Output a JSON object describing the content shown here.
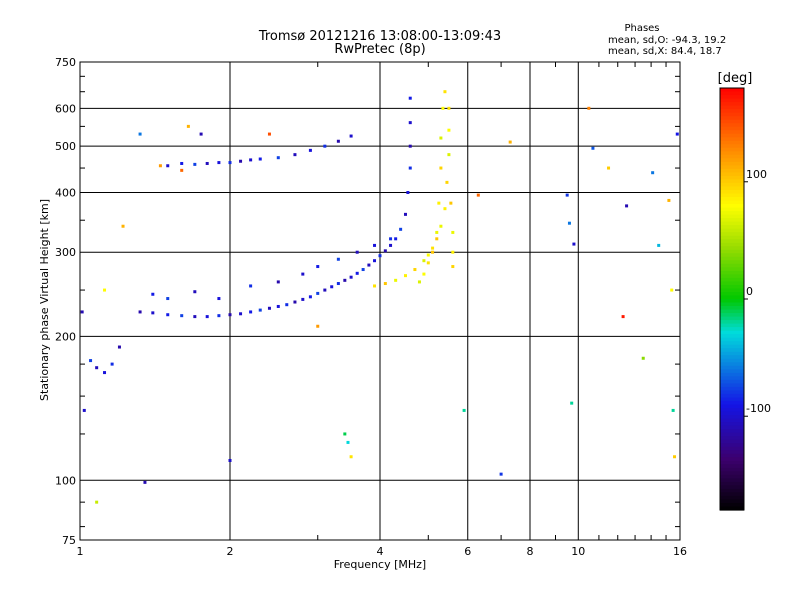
{
  "chart_data": {
    "type": "scatter",
    "title": "Tromsø 20121216 13:08:00-13:09:43",
    "subtitle": "RwPretec (8p)",
    "xlabel": "Frequency [MHz]",
    "ylabel": "Stationary phase Virtual Height [km]",
    "x_scale": "log",
    "y_scale": "log",
    "xlim": [
      1,
      16
    ],
    "ylim": [
      75,
      750
    ],
    "x_ticks": [
      1,
      2,
      4,
      6,
      8,
      10,
      16
    ],
    "x_tick_labels": [
      "1",
      "2",
      "4",
      "6",
      "8",
      "10",
      "16"
    ],
    "y_ticks": [
      75,
      100,
      200,
      300,
      400,
      500,
      600,
      750
    ],
    "y_tick_labels": [
      "75",
      "100",
      "200",
      "300",
      "400",
      "500",
      "600",
      "750"
    ],
    "grid": true,
    "legend": {
      "title": "Phases",
      "lines": [
        "mean, sd,O: -94.3, 19.2",
        "mean, sd,X:  84.4, 18.7"
      ],
      "placement": "top-right"
    },
    "colorbar": {
      "label": "[deg]",
      "range": [
        -180,
        180
      ],
      "ticks": [
        -100,
        0,
        100
      ],
      "tick_labels": [
        "-100",
        "0",
        "100"
      ],
      "colormap": "rainbow"
    },
    "series": [
      {
        "name": "O",
        "color_value": -94.3,
        "x": [
          1.32,
          1.4,
          1.5,
          1.6,
          1.7,
          1.8,
          1.9,
          2.0,
          2.1,
          2.2,
          2.3,
          2.4,
          2.5,
          2.6,
          2.7,
          2.8,
          2.9,
          3.0,
          3.1,
          3.2,
          3.3,
          3.4,
          3.5,
          3.6,
          3.7,
          3.8,
          3.9,
          4.0,
          4.1,
          4.2,
          4.3,
          4.4,
          4.5,
          4.55,
          4.6,
          4.6,
          4.6,
          4.6,
          1.05,
          1.08,
          1.12,
          1.16,
          1.2,
          1.5,
          1.6,
          1.7,
          1.8,
          1.9,
          2.0,
          2.1,
          2.2,
          2.3,
          2.5,
          2.7,
          2.9,
          3.1,
          3.3,
          3.5,
          1.4,
          1.5,
          1.7,
          1.9,
          2.2,
          2.5,
          2.8,
          3.0,
          3.3,
          3.6,
          3.9,
          4.2
        ],
        "y": [
          225,
          224,
          222,
          221,
          220,
          220,
          221,
          222,
          223,
          225,
          227,
          229,
          231,
          233,
          236,
          239,
          242,
          246,
          250,
          254,
          258,
          262,
          266,
          271,
          276,
          282,
          288,
          295,
          302,
          310,
          320,
          335,
          360,
          400,
          450,
          500,
          560,
          630,
          178,
          172,
          168,
          175,
          190,
          455,
          460,
          458,
          460,
          462,
          462,
          465,
          468,
          470,
          473,
          480,
          490,
          500,
          512,
          525,
          245,
          240,
          248,
          240,
          255,
          260,
          270,
          280,
          290,
          300,
          310,
          320
        ]
      },
      {
        "name": "X",
        "color_value": 84.4,
        "x": [
          3.9,
          4.1,
          4.3,
          4.5,
          4.7,
          4.9,
          5.0,
          5.1,
          5.2,
          5.3,
          5.4,
          5.45,
          5.5,
          5.5,
          5.5,
          5.55,
          5.6,
          5.6,
          5.6,
          4.8,
          4.9,
          5.0,
          5.1,
          5.2,
          5.25,
          5.3,
          5.3,
          5.35,
          5.4
        ],
        "y": [
          255,
          258,
          262,
          268,
          276,
          288,
          296,
          306,
          320,
          340,
          370,
          420,
          480,
          540,
          600,
          380,
          330,
          300,
          280,
          260,
          270,
          285,
          300,
          330,
          380,
          450,
          520,
          600,
          650
        ]
      }
    ],
    "scattered_points": {
      "x": [
        1.01,
        1.02,
        1.08,
        1.12,
        1.22,
        1.32,
        1.35,
        1.45,
        1.6,
        1.65,
        1.75,
        2.0,
        2.4,
        3.0,
        3.4,
        3.45,
        3.5,
        5.9,
        6.3,
        7.0,
        7.3,
        9.5,
        9.6,
        9.7,
        9.8,
        10.5,
        10.7,
        11.5,
        12.3,
        12.5,
        13.5,
        14.1,
        14.5,
        15.2,
        15.4,
        15.5,
        15.6,
        15.8
      ],
      "y": [
        225,
        140,
        90,
        250,
        340,
        530,
        99,
        455,
        445,
        550,
        530,
        110,
        530,
        210,
        125,
        120,
        112,
        140,
        395,
        103,
        510,
        395,
        345,
        145,
        312,
        600,
        495,
        450,
        220,
        375,
        180,
        440,
        310,
        385,
        250,
        140,
        112,
        530
      ],
      "c": [
        -110,
        -100,
        60,
        80,
        110,
        -60,
        -110,
        120,
        140,
        110,
        -110,
        -100,
        150,
        120,
        -10,
        -30,
        90,
        -20,
        140,
        -80,
        110,
        -80,
        -60,
        -20,
        -100,
        130,
        -70,
        100,
        170,
        -110,
        40,
        -60,
        -40,
        110,
        80,
        -20,
        100,
        -90
      ]
    }
  }
}
